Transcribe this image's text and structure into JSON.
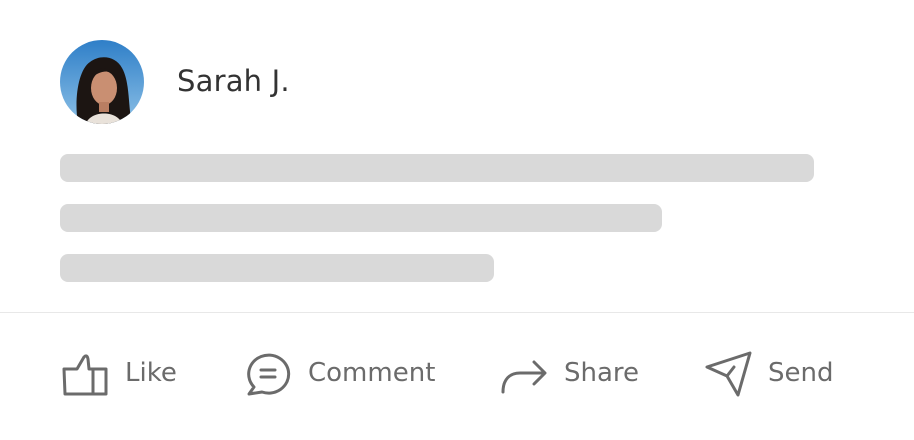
{
  "post": {
    "author": "Sarah J.",
    "avatar_alt": "Sarah J. avatar"
  },
  "skeleton_lines": 3,
  "actions": [
    {
      "label": "Like",
      "icon": "thumbs-up-icon"
    },
    {
      "label": "Comment",
      "icon": "comment-icon"
    },
    {
      "label": "Share",
      "icon": "share-arrow-icon"
    },
    {
      "label": "Send",
      "icon": "send-icon"
    }
  ],
  "colors": {
    "skeleton": "#d9d9d9",
    "icon": "#6b6b6b",
    "text": "#333333",
    "divider": "#e8e8e8"
  }
}
